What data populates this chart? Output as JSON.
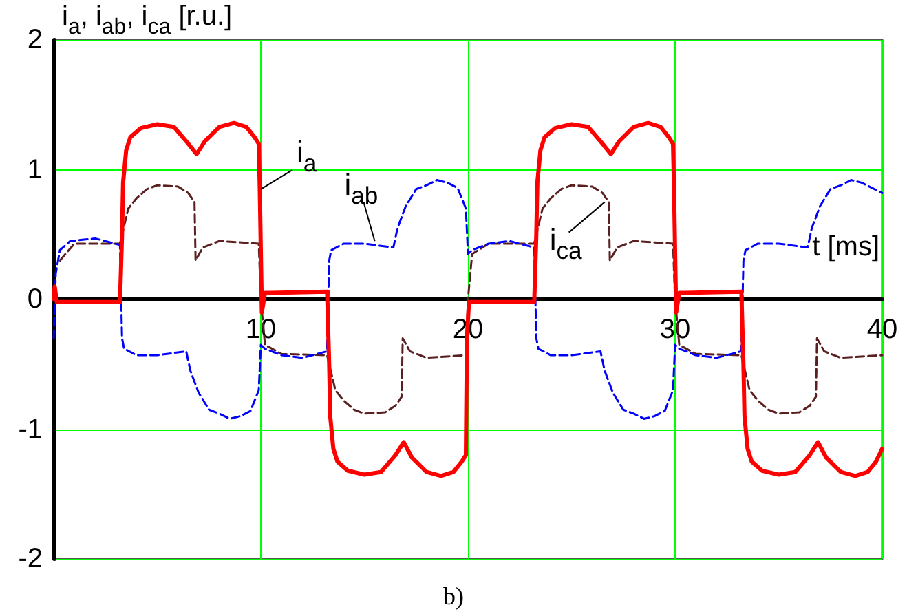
{
  "chart_data": {
    "type": "line",
    "xlabel": "t [ms]",
    "ylabel": "i$_{a}$, i$_{ab}$, i$_{ca}$ [r.u.]",
    "xlim": [
      0,
      40
    ],
    "ylim": [
      -2,
      2
    ],
    "xticks": [
      10,
      20,
      30,
      40
    ],
    "yticks": [
      -2,
      -1,
      0,
      1,
      2
    ],
    "grid": true,
    "marker": "none",
    "series": [
      {
        "color": "#ff0000",
        "line_style": "solid",
        "x": [
          0,
          0.05,
          0.15,
          3.2,
          3.3,
          3.35,
          3.5,
          3.7,
          4.2,
          5,
          5.8,
          6.5,
          6.9,
          7.3,
          8,
          8.7,
          9.3,
          9.7,
          9.9,
          9.95,
          10.05,
          10.2,
          10.5,
          13.2,
          13.3,
          13.35,
          13.5,
          13.7,
          14.2,
          15,
          15.8,
          16.5,
          16.9,
          17.3,
          18,
          18.7,
          19.3,
          19.7,
          19.9,
          19.95,
          20.05,
          20.2,
          23.2,
          23.3,
          23.35,
          23.5,
          23.7,
          24.2,
          25,
          25.8,
          26.5,
          26.9,
          27.3,
          28,
          28.7,
          29.3,
          29.7,
          29.9,
          29.95,
          30.05,
          30.2,
          30.5,
          33.2,
          33.3,
          33.35,
          33.5,
          33.7,
          34.2,
          35,
          35.8,
          36.5,
          36.9,
          37.3,
          38,
          38.7,
          39.3,
          39.7,
          40
        ],
        "values": [
          0,
          0.1,
          -0.02,
          -0.02,
          0.5,
          0.9,
          1.15,
          1.25,
          1.32,
          1.35,
          1.33,
          1.2,
          1.12,
          1.22,
          1.33,
          1.36,
          1.33,
          1.25,
          1.2,
          0.85,
          -0.1,
          0.05,
          0.05,
          0.06,
          -0.5,
          -0.9,
          -1.15,
          -1.25,
          -1.32,
          -1.35,
          -1.33,
          -1.2,
          -1.1,
          -1.22,
          -1.33,
          -1.36,
          -1.33,
          -1.25,
          -1.2,
          -0.3,
          -0.02,
          -0.02,
          -0.02,
          0.5,
          0.9,
          1.15,
          1.25,
          1.32,
          1.35,
          1.33,
          1.2,
          1.12,
          1.22,
          1.33,
          1.36,
          1.33,
          1.25,
          1.2,
          0.85,
          -0.1,
          0.05,
          0.05,
          0.06,
          -0.5,
          -0.9,
          -1.15,
          -1.25,
          -1.32,
          -1.35,
          -1.33,
          -1.2,
          -1.1,
          -1.22,
          -1.33,
          -1.36,
          -1.33,
          -1.25,
          -1.15
        ]
      },
      {
        "color": "#0000ff",
        "line_style": "dashed",
        "x": [
          0,
          0.1,
          0.3,
          0.8,
          2,
          3.2,
          3.3,
          3.4,
          4,
          5,
          6.4,
          6.6,
          7,
          7.5,
          8,
          8.5,
          9,
          9.5,
          9.9,
          10,
          10.2,
          11,
          12,
          13.2,
          13.3,
          13.4,
          14,
          15,
          16.4,
          16.6,
          17,
          17.5,
          18,
          18.5,
          19,
          19.5,
          19.9,
          20,
          20.2,
          21,
          22,
          23.2,
          23.3,
          23.4,
          24,
          25,
          26.4,
          26.6,
          27,
          27.5,
          28,
          28.5,
          29,
          29.5,
          29.9,
          30,
          30.2,
          31,
          32,
          33.2,
          33.3,
          33.4,
          34,
          35,
          36.4,
          36.6,
          37,
          37.5,
          38,
          38.5,
          39,
          39.5,
          40
        ],
        "values": [
          -0.3,
          0.2,
          0.38,
          0.45,
          0.47,
          0.42,
          -0.3,
          -0.38,
          -0.43,
          -0.43,
          -0.4,
          -0.55,
          -0.72,
          -0.85,
          -0.88,
          -0.92,
          -0.9,
          -0.86,
          -0.7,
          -0.35,
          -0.38,
          -0.43,
          -0.45,
          -0.4,
          0.3,
          0.38,
          0.43,
          0.43,
          0.4,
          0.55,
          0.72,
          0.85,
          0.88,
          0.92,
          0.9,
          0.86,
          0.7,
          0.35,
          0.38,
          0.43,
          0.45,
          0.4,
          -0.3,
          -0.38,
          -0.43,
          -0.43,
          -0.4,
          -0.55,
          -0.72,
          -0.85,
          -0.88,
          -0.92,
          -0.9,
          -0.86,
          -0.7,
          -0.35,
          -0.38,
          -0.43,
          -0.45,
          -0.4,
          0.3,
          0.38,
          0.43,
          0.43,
          0.4,
          0.55,
          0.72,
          0.85,
          0.88,
          0.92,
          0.9,
          0.86,
          0.82
        ]
      },
      {
        "color": "#5a1f1f",
        "line_style": "dashed",
        "x": [
          0.3,
          1,
          3.2,
          3.3,
          3.6,
          4,
          4.5,
          5,
          6,
          6.5,
          6.8,
          6.85,
          7.2,
          8,
          9.9,
          10,
          10.2,
          11,
          13.2,
          13.3,
          13.6,
          14,
          14.5,
          15,
          16,
          16.5,
          16.8,
          16.85,
          17.2,
          18,
          19.9,
          20,
          20.2,
          21,
          23.2,
          23.3,
          23.6,
          24,
          24.5,
          25,
          26,
          26.5,
          26.8,
          26.85,
          27.2,
          28,
          29.9,
          30,
          30.2,
          31,
          33.2,
          33.3,
          33.6,
          34,
          34.5,
          35,
          36,
          36.5,
          36.8,
          36.85,
          37.2,
          38,
          40
        ],
        "values": [
          0.3,
          0.43,
          0.43,
          0.5,
          0.7,
          0.78,
          0.85,
          0.88,
          0.87,
          0.82,
          0.75,
          0.3,
          0.4,
          0.45,
          0.43,
          0,
          -0.35,
          -0.42,
          -0.43,
          -0.5,
          -0.7,
          -0.78,
          -0.85,
          -0.88,
          -0.87,
          -0.82,
          -0.75,
          -0.3,
          -0.4,
          -0.45,
          -0.43,
          0,
          0.35,
          0.43,
          0.43,
          0.5,
          0.7,
          0.78,
          0.85,
          0.88,
          0.87,
          0.82,
          0.75,
          0.3,
          0.4,
          0.45,
          0.43,
          0,
          -0.35,
          -0.42,
          -0.43,
          -0.5,
          -0.7,
          -0.78,
          -0.85,
          -0.88,
          -0.87,
          -0.82,
          -0.75,
          -0.3,
          -0.4,
          -0.45,
          -0.43
        ]
      }
    ],
    "annotations": [
      {
        "text": "i$_{a}$",
        "x": 10,
        "y": 0.85
      },
      {
        "text": "i$_{ab}$",
        "x": 15.5,
        "y": 0.45
      },
      {
        "text": "i$_{ca}$",
        "x": 26.6,
        "y": 0.75
      },
      "b)"
    ]
  }
}
